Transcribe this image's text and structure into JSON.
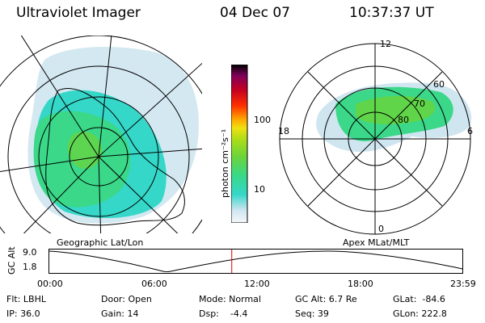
{
  "header": {
    "instrument": "Ultraviolet Imager",
    "date": "04 Dec 07",
    "time": "10:37:37 UT"
  },
  "geo_panel": {
    "label": "Geographic Lat/Lon"
  },
  "mag_panel": {
    "label": "Apex MLat/MLT",
    "mlt_labels": {
      "top": "12",
      "left": "18",
      "right": "6",
      "bottom": "0"
    },
    "lat_labels": [
      "60",
      "70",
      "80"
    ]
  },
  "colorbar": {
    "unit": "photon cm⁻²s⁻¹",
    "ticks": [
      "100",
      "10"
    ],
    "colors": [
      "#cfe5f0",
      "#ffffff",
      "#35d7c8",
      "#3ad888",
      "#6cd43a",
      "#a6dd1a",
      "#f0e010",
      "#ffa000",
      "#ff3000",
      "#c50020",
      "#80005a",
      "#000000"
    ]
  },
  "altitude_plot": {
    "ylabel": "GC Alt",
    "yticks": [
      "9.0",
      "1.8"
    ],
    "xticks": [
      "00:00",
      "06:00",
      "12:00",
      "18:00",
      "23:59"
    ],
    "current_time_fraction": 0.4428
  },
  "info": {
    "flt": "Flt: LBHL",
    "ip": "IP: 36.0",
    "door": "Door: Open",
    "gain": "Gain: 14",
    "mode": "Mode: Normal",
    "dsp": "Dsp:    -4.4",
    "gcalt": "GC Alt: 6.7 Re",
    "seq": "Seq: 39",
    "glat": "GLat:  -84.6",
    "glon": "GLon: 222.8"
  }
}
